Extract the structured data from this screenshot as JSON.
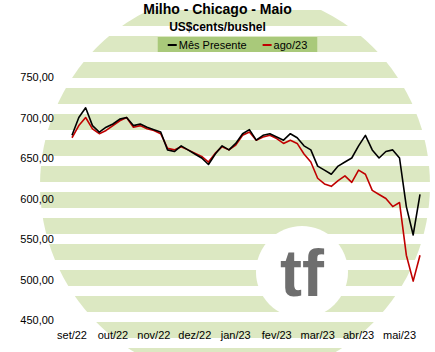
{
  "chart_data": {
    "type": "line",
    "title": "Milho - Chicago - Maio",
    "subtitle": "US$cents/bushel",
    "annotations": [
      "tf"
    ],
    "categories": [
      "set/22",
      null,
      null,
      null,
      null,
      null,
      "out/22",
      null,
      null,
      null,
      null,
      null,
      "nov/22",
      null,
      null,
      null,
      null,
      null,
      "dez/22",
      null,
      null,
      null,
      null,
      null,
      "jan/23",
      null,
      null,
      null,
      null,
      null,
      "fev/23",
      null,
      null,
      null,
      null,
      null,
      "mar/23",
      null,
      null,
      null,
      null,
      null,
      "abr/23",
      null,
      null,
      null,
      null,
      null,
      "mai/23",
      null,
      null,
      null
    ],
    "series": [
      {
        "name": "Mês Presente",
        "color": "#000000",
        "values": [
          678,
          700,
          712,
          690,
          682,
          688,
          692,
          698,
          700,
          690,
          692,
          688,
          685,
          682,
          660,
          658,
          665,
          660,
          655,
          650,
          642,
          655,
          665,
          660,
          668,
          680,
          685,
          672,
          678,
          680,
          676,
          672,
          680,
          675,
          665,
          660,
          640,
          635,
          630,
          640,
          645,
          650,
          665,
          678,
          660,
          650,
          658,
          660,
          650,
          590,
          555,
          605
        ]
      },
      {
        "name": "ago/23",
        "color": "#c00000",
        "values": [
          675,
          690,
          700,
          686,
          680,
          684,
          690,
          696,
          700,
          688,
          690,
          686,
          684,
          680,
          662,
          660,
          664,
          660,
          656,
          652,
          645,
          656,
          664,
          660,
          666,
          678,
          682,
          672,
          676,
          678,
          674,
          668,
          672,
          668,
          655,
          645,
          625,
          618,
          615,
          622,
          628,
          620,
          635,
          630,
          610,
          605,
          600,
          590,
          595,
          530,
          498,
          530
        ]
      }
    ],
    "ylim": [
      450,
      750
    ],
    "yticks": [
      {
        "value": 450,
        "label": "450,00"
      },
      {
        "value": 500,
        "label": "500,00"
      },
      {
        "value": 550,
        "label": "550,00"
      },
      {
        "value": 600,
        "label": "600,00"
      },
      {
        "value": 650,
        "label": "650,00"
      },
      {
        "value": 700,
        "label": "700,00"
      },
      {
        "value": 750,
        "label": "750,00"
      }
    ],
    "grid": false,
    "legend": "top"
  }
}
